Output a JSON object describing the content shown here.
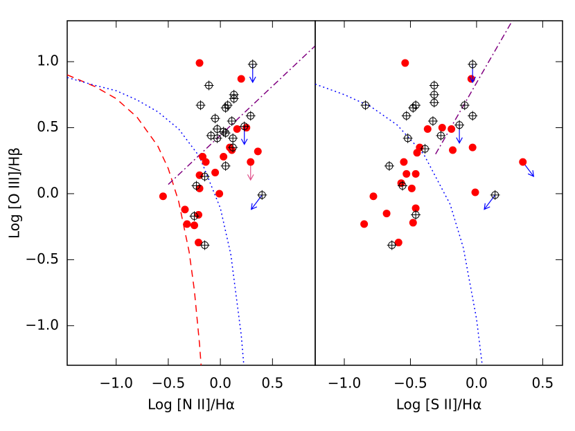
{
  "chart_data": [
    {
      "type": "scatter",
      "xlabel": "Log [N II]/Hα",
      "ylabel": "Log [O III]/Hβ",
      "xlim": [
        -1.47,
        0.91
      ],
      "ylim": [
        -1.3,
        1.31
      ],
      "xticks": [
        {
          "value": -1.0,
          "label": "−1.0"
        },
        {
          "value": -0.5,
          "label": "−0.5"
        },
        {
          "value": 0.0,
          "label": "0.0"
        },
        {
          "value": 0.5,
          "label": "0.5"
        }
      ],
      "yticks": [
        {
          "value": -1.0,
          "label": "−1.0"
        },
        {
          "value": -0.5,
          "label": "−0.5"
        },
        {
          "value": 0.0,
          "label": "0.0"
        },
        {
          "value": 0.5,
          "label": "0.5"
        },
        {
          "value": 1.0,
          "label": "1.0"
        }
      ],
      "series": [
        {
          "style": "dashed",
          "color": "#ff0000",
          "x": [
            -1.47,
            -1.2,
            -1.0,
            -0.8,
            -0.6,
            -0.5,
            -0.4,
            -0.3,
            -0.25,
            -0.2,
            -0.185
          ],
          "values": [
            0.9,
            0.81,
            0.72,
            0.58,
            0.36,
            0.19,
            -0.06,
            -0.44,
            -0.73,
            -1.14,
            -1.3
          ]
        },
        {
          "style": "dotted",
          "color": "#0000ff",
          "x": [
            -1.47,
            -1.2,
            -1.0,
            -0.8,
            -0.6,
            -0.4,
            -0.2,
            0.0,
            0.1,
            0.2,
            0.225
          ],
          "values": [
            0.88,
            0.82,
            0.78,
            0.71,
            0.62,
            0.49,
            0.28,
            -0.11,
            -0.46,
            -1.07,
            -1.3
          ]
        },
        {
          "style": "dashdot",
          "color": "#800080",
          "x": [
            -0.5,
            0.91
          ],
          "values": [
            0.07,
            1.12
          ]
        },
        {
          "style": "filled",
          "color": "#ff0000",
          "x": [
            -0.2,
            0.2,
            -0.55,
            -0.34,
            -0.32,
            -0.25,
            -0.21,
            -0.21,
            -0.2,
            -0.2,
            -0.17,
            -0.14,
            -0.05,
            -0.01,
            0.03,
            0.09,
            0.11,
            0.16,
            0.25,
            0.36
          ],
          "values": [
            0.99,
            0.87,
            -0.02,
            -0.12,
            -0.23,
            -0.24,
            -0.16,
            -0.37,
            0.04,
            0.14,
            0.28,
            0.24,
            0.16,
            0.0,
            0.28,
            0.35,
            0.33,
            0.49,
            0.5,
            0.32
          ]
        },
        {
          "style": "filled",
          "color": "#ff0000",
          "limit": "down",
          "arrow_color": "#e0508a",
          "x": [
            0.29
          ],
          "values": [
            0.24
          ]
        },
        {
          "style": "open",
          "color": "#000000",
          "x": [
            -0.11,
            -0.19,
            0.13,
            0.13,
            0.07,
            0.05,
            -0.03,
            -0.09,
            -0.03,
            0.03,
            0.05,
            -0.05,
            0.11,
            0.12,
            0.29,
            -0.23,
            -0.25,
            -0.15,
            0.05,
            -0.15,
            0.12
          ],
          "values": [
            0.82,
            0.67,
            0.75,
            0.72,
            0.67,
            0.65,
            0.49,
            0.44,
            0.42,
            0.47,
            0.46,
            0.57,
            0.55,
            0.42,
            0.59,
            0.06,
            -0.17,
            0.13,
            0.21,
            -0.39,
            0.35
          ]
        },
        {
          "style": "open",
          "color": "#000000",
          "limit": "down",
          "arrow_color": "#0000ff",
          "x": [
            0.31,
            0.23
          ],
          "values": [
            0.98,
            0.51
          ]
        },
        {
          "style": "open",
          "color": "#000000",
          "limit": "down-left",
          "arrow_color": "#0000ff",
          "x": [
            0.4
          ],
          "values": [
            -0.01
          ]
        }
      ]
    },
    {
      "type": "scatter",
      "xlabel": "Log [S II]/Hα",
      "xlim": [
        -1.22,
        0.65
      ],
      "ylim": [
        -1.3,
        1.31
      ],
      "xticks": [
        {
          "value": -1.0,
          "label": "−1.0"
        },
        {
          "value": -0.5,
          "label": "−0.5"
        },
        {
          "value": 0.0,
          "label": "0.0"
        },
        {
          "value": 0.5,
          "label": "0.5"
        }
      ],
      "series": [
        {
          "style": "dotted",
          "color": "#0000ff",
          "x": [
            -1.22,
            -1.0,
            -0.8,
            -0.6,
            -0.4,
            -0.2,
            -0.1,
            0.0,
            0.043
          ],
          "values": [
            0.83,
            0.75,
            0.66,
            0.52,
            0.3,
            -0.08,
            -0.41,
            -0.95,
            -1.3
          ]
        },
        {
          "style": "dashdot",
          "color": "#800080",
          "x": [
            -0.31,
            0.27
          ],
          "values": [
            0.3,
            1.31
          ]
        },
        {
          "style": "filled",
          "color": "#ff0000",
          "x": [
            -0.54,
            -0.04,
            -0.19,
            -0.26,
            -0.37,
            -0.45,
            -0.43,
            -0.18,
            -0.03,
            -0.55,
            -0.53,
            -0.46,
            -0.49,
            -0.57,
            -0.78,
            -0.01,
            -0.68,
            -0.46,
            -0.85,
            -0.48,
            -0.59
          ],
          "values": [
            0.99,
            0.87,
            0.49,
            0.5,
            0.49,
            0.31,
            0.35,
            0.33,
            0.35,
            0.24,
            0.15,
            0.15,
            0.04,
            0.08,
            -0.02,
            0.01,
            -0.15,
            -0.11,
            -0.23,
            -0.22,
            -0.37
          ]
        },
        {
          "style": "filled",
          "color": "#ff0000",
          "limit": "down-right",
          "arrow_color": "#0000ff",
          "x": [
            0.35
          ],
          "values": [
            0.24
          ]
        },
        {
          "style": "open",
          "color": "#000000",
          "x": [
            -0.32,
            -0.32,
            -0.84,
            -0.46,
            -0.48,
            -0.32,
            -0.53,
            -0.33,
            -0.09,
            -0.03,
            -0.52,
            -0.39,
            -0.27,
            -0.66,
            -0.56,
            -0.46,
            -0.64
          ],
          "values": [
            0.82,
            0.75,
            0.67,
            0.67,
            0.65,
            0.69,
            0.59,
            0.55,
            0.67,
            0.59,
            0.42,
            0.34,
            0.44,
            0.21,
            0.06,
            -0.16,
            -0.39
          ]
        },
        {
          "style": "open",
          "color": "#000000",
          "limit": "down",
          "arrow_color": "#0000ff",
          "x": [
            -0.03,
            -0.13
          ],
          "values": [
            0.98,
            0.52
          ]
        },
        {
          "style": "open",
          "color": "#000000",
          "limit": "down-left",
          "arrow_color": "#0000ff",
          "x": [
            0.14
          ],
          "values": [
            -0.01
          ]
        }
      ]
    }
  ]
}
